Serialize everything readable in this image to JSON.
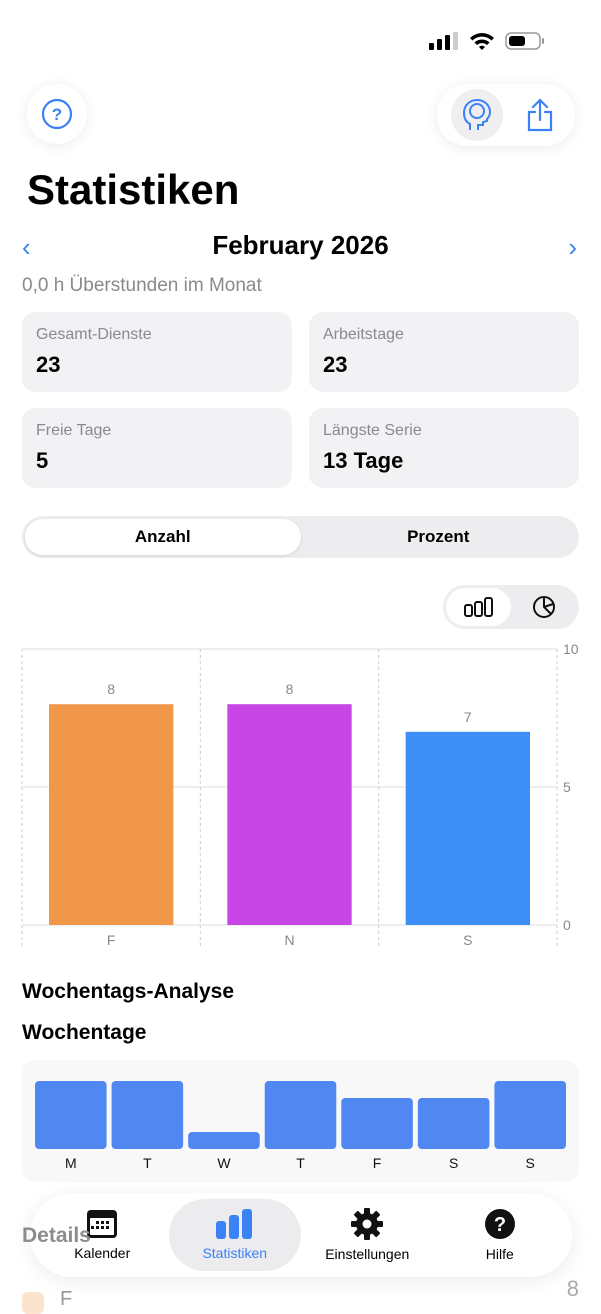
{
  "header": {
    "title": "Statistiken",
    "month": "February 2026",
    "overtime": "0,0 h Überstunden im Monat"
  },
  "cards": [
    {
      "label": "Gesamt-Dienste",
      "value": "23"
    },
    {
      "label": "Arbeitstage",
      "value": "23"
    },
    {
      "label": "Freie Tage",
      "value": "5"
    },
    {
      "label": "Längste Serie",
      "value": "13 Tage"
    }
  ],
  "segment": {
    "options": [
      "Anzahl",
      "Prozent"
    ],
    "selected": "Anzahl"
  },
  "chart_toggle": {
    "selected": "bar-chart"
  },
  "chart_data": [
    {
      "type": "bar",
      "categories": [
        "F",
        "N",
        "S"
      ],
      "values": [
        8,
        8,
        7
      ],
      "colors": [
        "#f0974a",
        "#c846e6",
        "#3d8ff5"
      ],
      "ylim": [
        0,
        10
      ],
      "yticks": [
        0,
        5,
        10
      ],
      "grid": true
    },
    {
      "type": "bar",
      "title": "Wochentage",
      "categories": [
        "M",
        "T",
        "W",
        "T",
        "F",
        "S",
        "S"
      ],
      "values": [
        4,
        4,
        1,
        4,
        3,
        3,
        4
      ],
      "color": "#5087f0"
    }
  ],
  "sections": {
    "weekday_analysis": "Wochentags-Analyse",
    "weekdays": "Wochentage",
    "details": "Details",
    "detail_first": {
      "label": "F",
      "value": "8"
    }
  },
  "tabbar": [
    {
      "label": "Kalender",
      "icon": "calendar-icon"
    },
    {
      "label": "Statistiken",
      "icon": "bar-chart-icon",
      "active": true
    },
    {
      "label": "Einstellungen",
      "icon": "gear-icon"
    },
    {
      "label": "Hilfe",
      "icon": "help-icon"
    }
  ],
  "colors": {
    "accent": "#3b82f6"
  }
}
